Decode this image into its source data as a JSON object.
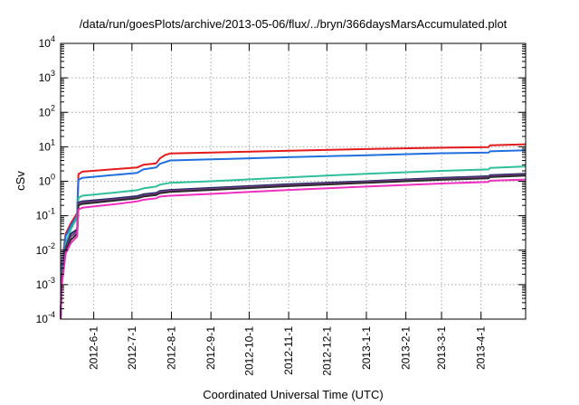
{
  "chart_data": {
    "type": "line",
    "title": "/data/run/goesPlots/archive/2013-05-06/flux/../bryn/366daysMarsAccumulated.plot",
    "xlabel": "Coordinated Universal Time (UTC)",
    "ylabel": "cSv",
    "yscale": "log",
    "ylim": [
      0.0001,
      10000
    ],
    "xlim": [
      "2012-05-06",
      "2013-05-06"
    ],
    "grid": true,
    "x_ticks": [
      "2012-6-1",
      "2012-7-1",
      "2012-8-1",
      "2012-9-1",
      "2012-10-1",
      "2012-11-1",
      "2012-12-1",
      "2013-1-1",
      "2013-2-1",
      "2013-3-1",
      "2013-4-1"
    ],
    "y_ticks": [
      {
        "base": "10",
        "exp": "-4"
      },
      {
        "base": "10",
        "exp": "-3"
      },
      {
        "base": "10",
        "exp": "-2"
      },
      {
        "base": "10",
        "exp": "-1"
      },
      {
        "base": "10",
        "exp": "0"
      },
      {
        "base": "10",
        "exp": "1"
      },
      {
        "base": "10",
        "exp": "2"
      },
      {
        "base": "10",
        "exp": "3"
      },
      {
        "base": "10",
        "exp": "4"
      }
    ],
    "series": [
      {
        "color": "#e41a1c",
        "points": [
          [
            "2012-05-06",
            0.0001
          ],
          [
            "2012-05-07",
            0.004
          ],
          [
            "2012-05-10",
            0.03
          ],
          [
            "2012-05-14",
            0.06
          ],
          [
            "2012-05-19",
            0.12
          ],
          [
            "2012-05-20",
            1.6
          ],
          [
            "2012-05-23",
            1.9
          ],
          [
            "2012-06-15",
            2.2
          ],
          [
            "2012-07-05",
            2.5
          ],
          [
            "2012-07-10",
            3.0
          ],
          [
            "2012-07-20",
            3.3
          ],
          [
            "2012-07-23",
            4.6
          ],
          [
            "2012-07-27",
            5.8
          ],
          [
            "2012-07-31",
            6.4
          ],
          [
            "2012-09-01",
            6.8
          ],
          [
            "2012-11-01",
            7.7
          ],
          [
            "2013-01-01",
            8.6
          ],
          [
            "2013-03-01",
            9.4
          ],
          [
            "2013-04-07",
            9.8
          ],
          [
            "2013-04-08",
            11.0
          ],
          [
            "2013-05-06",
            11.8
          ]
        ]
      },
      {
        "color": "#1f6fe0",
        "points": [
          [
            "2012-05-06",
            0.0001
          ],
          [
            "2012-05-07",
            0.003
          ],
          [
            "2012-05-10",
            0.025
          ],
          [
            "2012-05-14",
            0.05
          ],
          [
            "2012-05-19",
            0.1
          ],
          [
            "2012-05-20",
            1.1
          ],
          [
            "2012-05-23",
            1.25
          ],
          [
            "2012-06-15",
            1.5
          ],
          [
            "2012-07-05",
            1.75
          ],
          [
            "2012-07-10",
            2.2
          ],
          [
            "2012-07-20",
            2.5
          ],
          [
            "2012-07-23",
            3.2
          ],
          [
            "2012-07-31",
            4.0
          ],
          [
            "2012-09-01",
            4.3
          ],
          [
            "2012-11-01",
            5.0
          ],
          [
            "2013-01-01",
            5.7
          ],
          [
            "2013-03-01",
            6.5
          ],
          [
            "2013-04-07",
            6.8
          ],
          [
            "2013-04-08",
            7.4
          ],
          [
            "2013-05-06",
            7.9
          ]
        ]
      },
      {
        "color": "#2fbf9b",
        "points": [
          [
            "2012-05-06",
            0.0001
          ],
          [
            "2012-05-07",
            0.002
          ],
          [
            "2012-05-10",
            0.015
          ],
          [
            "2012-05-14",
            0.04
          ],
          [
            "2012-05-19",
            0.09
          ],
          [
            "2012-05-20",
            0.33
          ],
          [
            "2012-05-23",
            0.38
          ],
          [
            "2012-06-15",
            0.46
          ],
          [
            "2012-07-05",
            0.55
          ],
          [
            "2012-07-10",
            0.62
          ],
          [
            "2012-07-20",
            0.7
          ],
          [
            "2012-07-23",
            0.8
          ],
          [
            "2012-07-31",
            0.9
          ],
          [
            "2012-09-01",
            1.0
          ],
          [
            "2012-11-01",
            1.3
          ],
          [
            "2013-01-01",
            1.65
          ],
          [
            "2013-03-01",
            2.0
          ],
          [
            "2013-04-07",
            2.2
          ],
          [
            "2013-04-08",
            2.45
          ],
          [
            "2013-05-06",
            2.7
          ]
        ]
      },
      {
        "color": "#1a2a5e",
        "points": [
          [
            "2012-05-06",
            0.0001
          ],
          [
            "2012-05-07",
            0.0015
          ],
          [
            "2012-05-10",
            0.012
          ],
          [
            "2012-05-14",
            0.03
          ],
          [
            "2012-05-19",
            0.04
          ],
          [
            "2012-05-20",
            0.24
          ],
          [
            "2012-05-23",
            0.26
          ],
          [
            "2012-06-15",
            0.31
          ],
          [
            "2012-07-05",
            0.37
          ],
          [
            "2012-07-10",
            0.42
          ],
          [
            "2012-07-20",
            0.46
          ],
          [
            "2012-07-23",
            0.52
          ],
          [
            "2012-07-31",
            0.56
          ],
          [
            "2012-09-01",
            0.64
          ],
          [
            "2012-11-01",
            0.82
          ],
          [
            "2013-01-01",
            1.0
          ],
          [
            "2013-03-01",
            1.25
          ],
          [
            "2013-04-07",
            1.4
          ],
          [
            "2013-04-08",
            1.5
          ],
          [
            "2013-05-06",
            1.65
          ]
        ]
      },
      {
        "color": "#7a3a8a",
        "points": [
          [
            "2012-05-06",
            0.0001
          ],
          [
            "2012-05-07",
            0.0015
          ],
          [
            "2012-05-10",
            0.011
          ],
          [
            "2012-05-14",
            0.025
          ],
          [
            "2012-05-19",
            0.035
          ],
          [
            "2012-05-20",
            0.22
          ],
          [
            "2012-05-23",
            0.24
          ],
          [
            "2012-06-15",
            0.29
          ],
          [
            "2012-07-05",
            0.34
          ],
          [
            "2012-07-10",
            0.39
          ],
          [
            "2012-07-20",
            0.43
          ],
          [
            "2012-07-23",
            0.49
          ],
          [
            "2012-07-31",
            0.53
          ],
          [
            "2012-09-01",
            0.6
          ],
          [
            "2012-11-01",
            0.77
          ],
          [
            "2013-01-01",
            0.95
          ],
          [
            "2013-03-01",
            1.18
          ],
          [
            "2013-04-07",
            1.32
          ],
          [
            "2013-04-08",
            1.42
          ],
          [
            "2013-05-06",
            1.55
          ]
        ]
      },
      {
        "color": "#2b2b2b",
        "points": [
          [
            "2012-05-06",
            0.0001
          ],
          [
            "2012-05-07",
            0.0012
          ],
          [
            "2012-05-10",
            0.01
          ],
          [
            "2012-05-14",
            0.02
          ],
          [
            "2012-05-19",
            0.03
          ],
          [
            "2012-05-20",
            0.2
          ],
          [
            "2012-05-23",
            0.22
          ],
          [
            "2012-06-15",
            0.27
          ],
          [
            "2012-07-05",
            0.32
          ],
          [
            "2012-07-10",
            0.36
          ],
          [
            "2012-07-20",
            0.4
          ],
          [
            "2012-07-23",
            0.45
          ],
          [
            "2012-07-31",
            0.49
          ],
          [
            "2012-09-01",
            0.56
          ],
          [
            "2012-11-01",
            0.72
          ],
          [
            "2013-01-01",
            0.9
          ],
          [
            "2013-03-01",
            1.1
          ],
          [
            "2013-04-07",
            1.22
          ],
          [
            "2013-04-08",
            1.32
          ],
          [
            "2013-05-06",
            1.45
          ]
        ]
      },
      {
        "color": "#ef2fbf",
        "points": [
          [
            "2012-05-06",
            0.0001
          ],
          [
            "2012-05-07",
            0.001
          ],
          [
            "2012-05-10",
            0.008
          ],
          [
            "2012-05-14",
            0.016
          ],
          [
            "2012-05-19",
            0.025
          ],
          [
            "2012-05-20",
            0.15
          ],
          [
            "2012-05-23",
            0.17
          ],
          [
            "2012-06-15",
            0.21
          ],
          [
            "2012-07-05",
            0.26
          ],
          [
            "2012-07-10",
            0.29
          ],
          [
            "2012-07-20",
            0.32
          ],
          [
            "2012-07-23",
            0.36
          ],
          [
            "2012-07-31",
            0.38
          ],
          [
            "2012-09-01",
            0.43
          ],
          [
            "2012-11-01",
            0.56
          ],
          [
            "2013-01-01",
            0.7
          ],
          [
            "2013-03-01",
            0.86
          ],
          [
            "2013-04-07",
            0.96
          ],
          [
            "2013-04-08",
            1.04
          ],
          [
            "2013-05-06",
            1.12
          ]
        ]
      }
    ]
  }
}
